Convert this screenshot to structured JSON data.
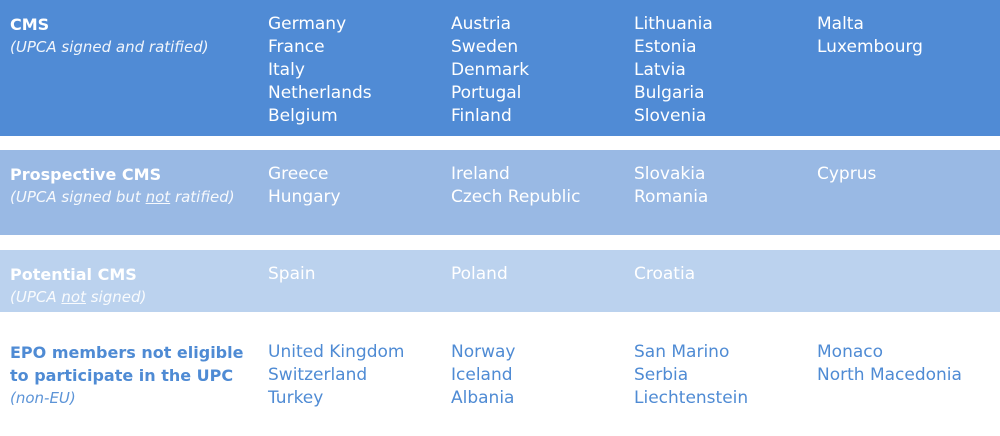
{
  "colors": {
    "cms": "#508bd5",
    "prospective": "#99b9e4",
    "potential": "#bbd2ee",
    "epo_text": "#4f8bd4"
  },
  "rows": [
    {
      "title": "CMS",
      "sub_before": "(UPCA signed and ratified)",
      "sub_under": "",
      "sub_after": "",
      "cols": [
        [
          "Germany",
          "France",
          "Italy",
          "Netherlands",
          "Belgium"
        ],
        [
          "Austria",
          "Sweden",
          "Denmark",
          "Portugal",
          "Finland"
        ],
        [
          "Lithuania",
          "Estonia",
          "Latvia",
          "Bulgaria",
          "Slovenia"
        ],
        [
          "Malta",
          "Luxembourg"
        ]
      ]
    },
    {
      "title": "Prospective CMS",
      "sub_before": "(UPCA signed but ",
      "sub_under": "not",
      "sub_after": " ratified)",
      "cols": [
        [
          "Greece",
          "Hungary"
        ],
        [
          "Ireland",
          "Czech Republic"
        ],
        [
          "Slovakia",
          "Romania"
        ],
        [
          "Cyprus"
        ]
      ]
    },
    {
      "title": "Potential CMS",
      "sub_before": "(UPCA ",
      "sub_under": "not",
      "sub_after": " signed)",
      "cols": [
        [
          "Spain"
        ],
        [
          "Poland"
        ],
        [
          "Croatia"
        ],
        []
      ]
    },
    {
      "title": "EPO members not eligible to participate in the UPC",
      "sub_before": "(non-EU)",
      "sub_under": "",
      "sub_after": "",
      "cols": [
        [
          "United Kingdom",
          "Switzerland",
          "Turkey"
        ],
        [
          "Norway",
          "Iceland",
          "Albania"
        ],
        [
          "San Marino",
          "Serbia",
          "Liechtenstein"
        ],
        [
          "Monaco",
          "North Macedonia"
        ]
      ]
    }
  ]
}
